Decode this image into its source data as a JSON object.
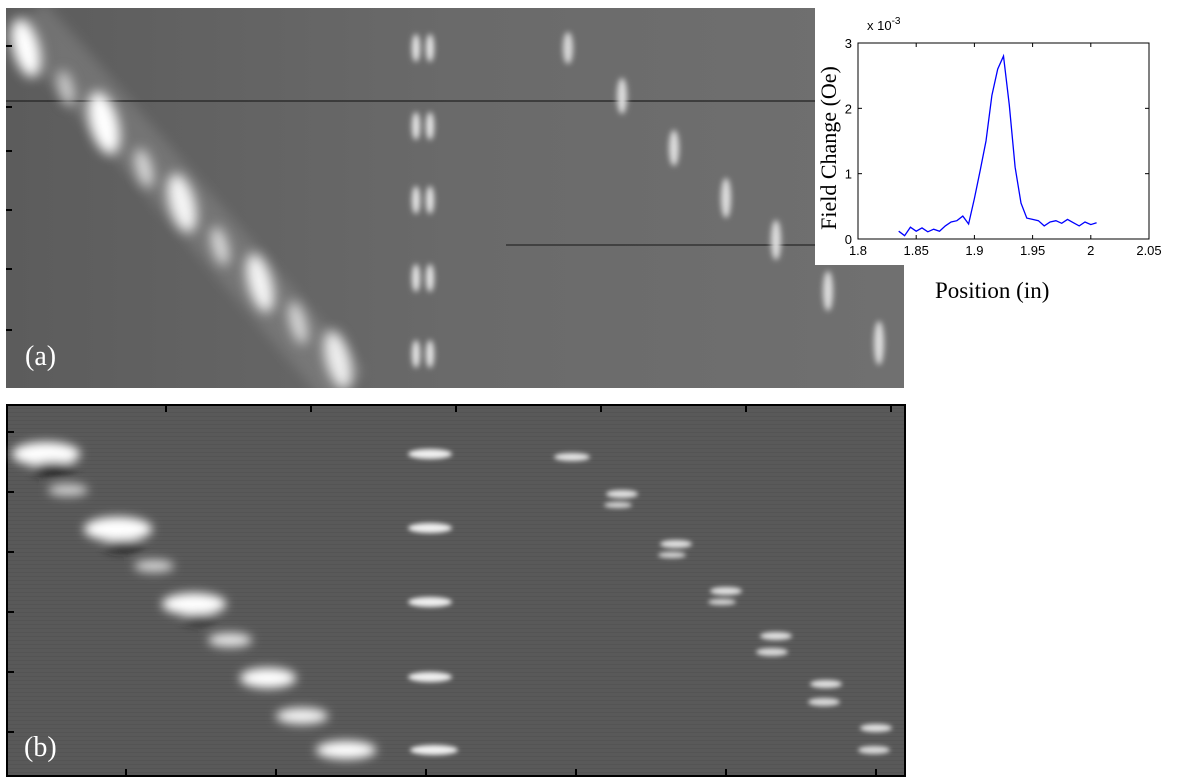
{
  "panel_a": {
    "label": "(a)"
  },
  "panel_b": {
    "label": "(b)"
  },
  "chart_data": {
    "type": "line",
    "title": "",
    "xlabel": "Position (in)",
    "ylabel": "Field Change (Oe)",
    "y_multiplier": "x 10",
    "y_exponent": "-3",
    "xlim": [
      1.8,
      2.05
    ],
    "ylim": [
      0,
      3
    ],
    "x_ticks": [
      "1.8",
      "1.85",
      "1.9",
      "1.95",
      "2",
      "2.05"
    ],
    "y_ticks": [
      "0",
      "1",
      "2",
      "3"
    ],
    "grid": false,
    "line_color": "#0000ff",
    "x": [
      1.835,
      1.84,
      1.845,
      1.85,
      1.855,
      1.86,
      1.865,
      1.87,
      1.875,
      1.88,
      1.885,
      1.89,
      1.895,
      1.9,
      1.905,
      1.91,
      1.915,
      1.92,
      1.925,
      1.93,
      1.935,
      1.94,
      1.945,
      1.95,
      1.955,
      1.96,
      1.965,
      1.97,
      1.975,
      1.98,
      1.985,
      1.99,
      1.995,
      2.0,
      2.005
    ],
    "values": [
      0.12,
      0.05,
      0.18,
      0.12,
      0.17,
      0.11,
      0.15,
      0.12,
      0.2,
      0.26,
      0.28,
      0.35,
      0.23,
      0.62,
      1.05,
      1.5,
      2.2,
      2.6,
      2.8,
      2.05,
      1.1,
      0.55,
      0.32,
      0.3,
      0.28,
      0.2,
      0.26,
      0.28,
      0.24,
      0.3,
      0.25,
      0.2,
      0.26,
      0.22,
      0.25
    ]
  }
}
